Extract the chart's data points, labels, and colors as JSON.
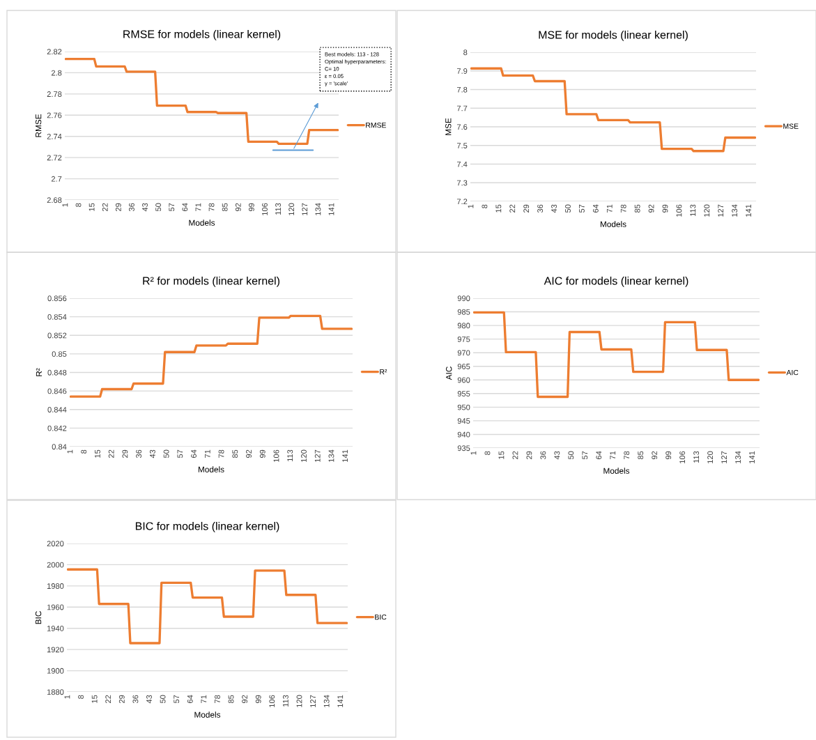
{
  "chart_data": [
    {
      "type": "line",
      "title": "RMSE for models (linear kernel)",
      "xlabel": "Models",
      "ylabel": "RMSE",
      "xlim": [
        0.5,
        144.5
      ],
      "xticks": [
        1,
        8,
        15,
        22,
        29,
        36,
        43,
        50,
        57,
        64,
        71,
        78,
        85,
        92,
        99,
        106,
        113,
        120,
        127,
        134,
        141
      ],
      "ylim": [
        2.68,
        2.82
      ],
      "yticks": [
        2.68,
        2.7,
        2.72,
        2.74,
        2.76,
        2.78,
        2.8,
        2.82
      ],
      "grid": "y",
      "legend": "right",
      "series": [
        {
          "name": "RMSE",
          "color": "#ed7d31",
          "x": [
            1,
            16,
            17,
            32,
            33,
            48,
            49,
            64,
            65,
            80,
            81,
            96,
            97,
            112,
            113,
            128,
            129,
            144
          ],
          "values": [
            2.813,
            2.813,
            2.806,
            2.806,
            2.801,
            2.801,
            2.769,
            2.769,
            2.763,
            2.763,
            2.762,
            2.762,
            2.735,
            2.735,
            2.733,
            2.733,
            2.746,
            2.746
          ]
        },
        {
          "color": "#5b9bd5",
          "x": [
            110,
            131
          ],
          "values": [
            2.727,
            2.727
          ]
        }
      ],
      "annotations": [
        "Best models: 113 - 128\nOptimal hyperparameters:\nC= 10\nε = 0.05\nγ = 'scale'"
      ]
    },
    {
      "type": "line",
      "title": "MSE for models (linear kernel)",
      "xlabel": "Models",
      "ylabel": "MSE",
      "xlim": [
        0.5,
        144.5
      ],
      "xticks": [
        1,
        8,
        15,
        22,
        29,
        36,
        43,
        50,
        57,
        64,
        71,
        78,
        85,
        92,
        99,
        106,
        113,
        120,
        127,
        134,
        141
      ],
      "ylim": [
        7.2,
        8
      ],
      "yticks": [
        7.2,
        7.3,
        7.4,
        7.5,
        7.6,
        7.7,
        7.8,
        7.9,
        8
      ],
      "grid": "y",
      "legend": "right",
      "series": [
        {
          "name": "MSE",
          "color": "#ed7d31",
          "x": [
            1,
            16,
            17,
            32,
            33,
            48,
            49,
            64,
            65,
            80,
            81,
            96,
            97,
            112,
            113,
            128,
            129,
            144
          ],
          "values": [
            7.913,
            7.913,
            7.875,
            7.875,
            7.845,
            7.845,
            7.668,
            7.668,
            7.636,
            7.636,
            7.624,
            7.624,
            7.482,
            7.482,
            7.47,
            7.47,
            7.542,
            7.542
          ]
        }
      ]
    },
    {
      "type": "line",
      "title": "R² for models (linear kernel)",
      "xlabel": "Models",
      "ylabel": "R²",
      "xlim": [
        0.5,
        144.5
      ],
      "xticks": [
        1,
        8,
        15,
        22,
        29,
        36,
        43,
        50,
        57,
        64,
        71,
        78,
        85,
        92,
        99,
        106,
        113,
        120,
        127,
        134,
        141
      ],
      "ylim": [
        0.84,
        0.856
      ],
      "yticks": [
        0.84,
        0.842,
        0.844,
        0.846,
        0.848,
        0.85,
        0.852,
        0.854,
        0.856
      ],
      "grid": "y",
      "legend": "right",
      "series": [
        {
          "name": "R²",
          "color": "#ed7d31",
          "x": [
            1,
            16,
            17,
            32,
            33,
            48,
            49,
            64,
            65,
            80,
            81,
            96,
            97,
            112,
            113,
            128,
            129,
            144
          ],
          "values": [
            0.8454,
            0.8454,
            0.8462,
            0.8462,
            0.8468,
            0.8468,
            0.8502,
            0.8502,
            0.8509,
            0.8509,
            0.8511,
            0.8511,
            0.8539,
            0.8539,
            0.8541,
            0.8541,
            0.8527,
            0.8527
          ]
        }
      ]
    },
    {
      "type": "line",
      "title": "AIC for models (linear kernel)",
      "xlabel": "Models",
      "ylabel": "AIC",
      "xlim": [
        0.5,
        144.5
      ],
      "xticks": [
        1,
        8,
        15,
        22,
        29,
        36,
        43,
        50,
        57,
        64,
        71,
        78,
        85,
        92,
        99,
        106,
        113,
        120,
        127,
        134,
        141
      ],
      "ylim": [
        935,
        990
      ],
      "yticks": [
        935,
        940,
        945,
        950,
        955,
        960,
        965,
        970,
        975,
        980,
        985,
        990
      ],
      "grid": "y",
      "legend": "right",
      "series": [
        {
          "name": "AIC",
          "color": "#ed7d31",
          "x": [
            1,
            16,
            17,
            32,
            33,
            48,
            49,
            64,
            65,
            80,
            81,
            96,
            97,
            112,
            113,
            128,
            129,
            144
          ],
          "values": [
            984.8,
            984.8,
            970.2,
            970.2,
            953.8,
            953.8,
            977.6,
            977.6,
            971.2,
            971.2,
            963.0,
            963.0,
            981.2,
            981.2,
            971.0,
            971.0,
            960.0,
            960.0
          ]
        }
      ]
    },
    {
      "type": "line",
      "title": "BIC for models (linear kernel)",
      "xlabel": "Models",
      "ylabel": "BIC",
      "xlim": [
        0.5,
        144.5
      ],
      "xticks": [
        1,
        8,
        15,
        22,
        29,
        36,
        43,
        50,
        57,
        64,
        71,
        78,
        85,
        92,
        99,
        106,
        113,
        120,
        127,
        134,
        141
      ],
      "ylim": [
        1880,
        2020
      ],
      "yticks": [
        1880,
        1900,
        1920,
        1940,
        1960,
        1980,
        2000,
        2020
      ],
      "grid": "y",
      "legend": "right",
      "series": [
        {
          "name": "BIC",
          "color": "#ed7d31",
          "x": [
            1,
            16,
            17,
            32,
            33,
            48,
            49,
            64,
            65,
            80,
            81,
            96,
            97,
            112,
            113,
            128,
            129,
            144
          ],
          "values": [
            1995.5,
            1995.5,
            1963,
            1963,
            1926,
            1926,
            1983,
            1983,
            1969,
            1969,
            1951,
            1951,
            1994.5,
            1994.5,
            1971.5,
            1971.5,
            1945,
            1945
          ]
        }
      ]
    }
  ]
}
